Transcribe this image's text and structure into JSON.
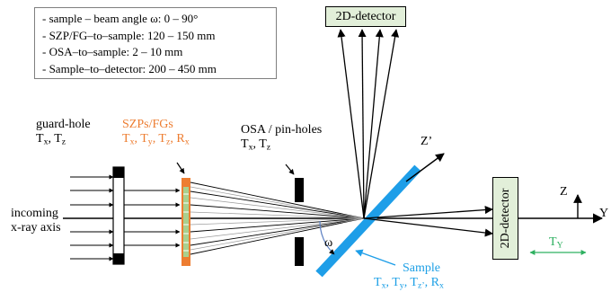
{
  "info_box": {
    "lines": [
      "- sample – beam angle ω: 0 – 90°",
      "- SZP/FG–to–sample: 120 – 150 mm",
      "- OSA–to–sample: 2 – 10 mm",
      "- Sample–to–detector: 200 – 450 mm"
    ]
  },
  "detectors": {
    "top": "2D-detector",
    "right": "2D-detector"
  },
  "labels": {
    "guard_hole": {
      "title": "guard-hole",
      "axes": [
        "T",
        "x",
        ", T",
        "z"
      ]
    },
    "szp": {
      "title": "SZPs/FGs",
      "axes": [
        "T",
        "x",
        ", T",
        "y",
        ", T",
        "z",
        ", R",
        "x"
      ]
    },
    "osa": {
      "title": "OSA / pin-holes",
      "axes": [
        "T",
        "x",
        ", T",
        "z"
      ]
    },
    "incoming": [
      "incoming",
      "x-ray axis"
    ],
    "sample": {
      "title": "Sample",
      "axes": [
        "T",
        "x",
        ", T",
        "y",
        ", T",
        "z’",
        ", R",
        "x"
      ]
    },
    "omega": "ω",
    "z_prime": "Z’",
    "axis_z": "Z",
    "axis_y": "Y",
    "t_y": [
      "T",
      "Y"
    ]
  },
  "colors": {
    "beam": "#000000",
    "szp_body": "#ed7d31",
    "szp_center": "#a9d08e",
    "sample": "#1e9ee8",
    "sample_label": "#1ea0e6",
    "t_y_arrow": "#2eb060",
    "detector_fill": "#e2efd9",
    "omega_arc": "#5b7fc2"
  }
}
